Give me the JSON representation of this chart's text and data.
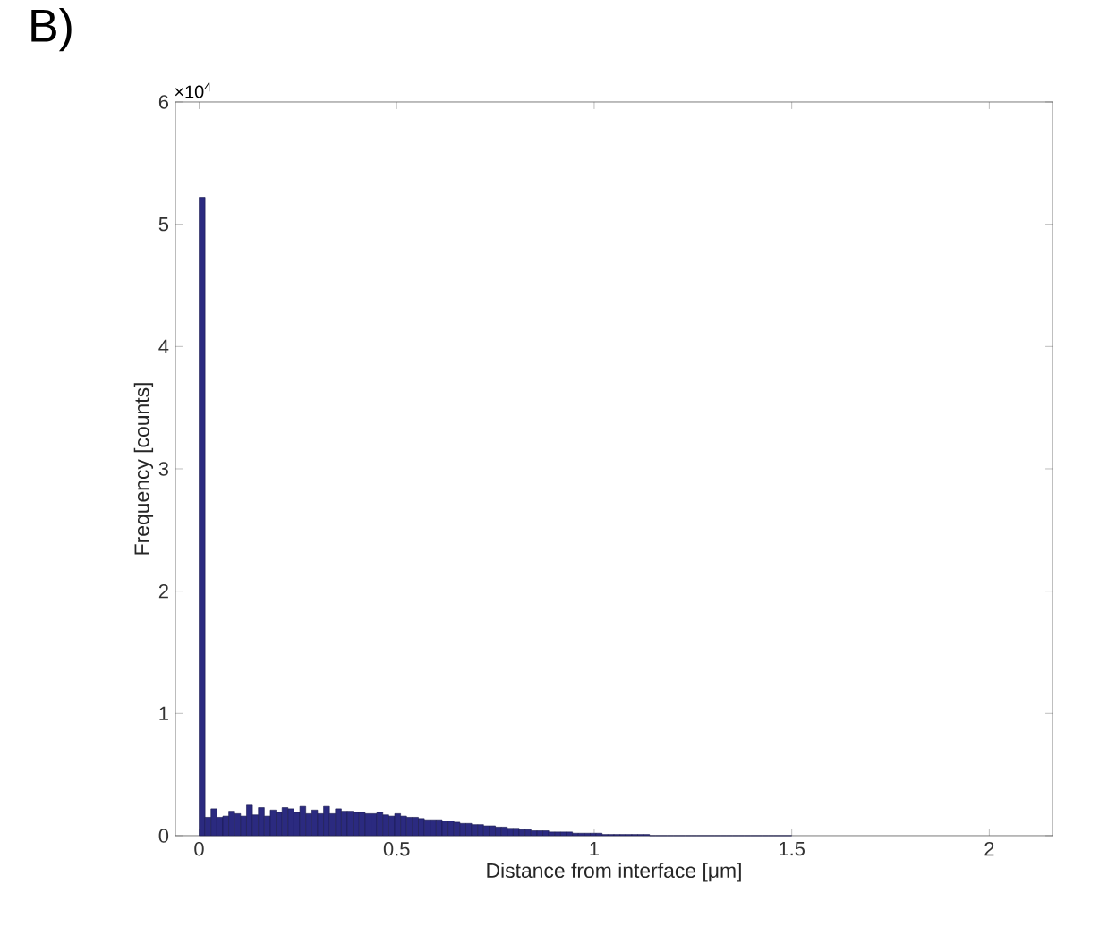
{
  "chart_data": {
    "type": "histogram",
    "xlabel": "Distance from interface [μm]",
    "ylabel": "Frequency [counts]",
    "annotations": [
      "B)",
      "×10$^{4}$"
    ],
    "color": "#2b2a80",
    "bins": [
      0,
      0.015,
      0.03,
      0.045,
      0.06,
      0.075,
      0.09,
      0.105,
      0.12,
      0.135,
      0.15,
      0.165,
      0.18,
      0.195,
      0.21,
      0.225,
      0.24,
      0.255,
      0.27,
      0.285,
      0.3,
      0.315,
      0.33,
      0.345,
      0.36,
      0.375,
      0.39,
      0.405,
      0.42,
      0.435,
      0.45,
      0.465,
      0.48,
      0.495,
      0.51,
      0.525,
      0.54,
      0.555,
      0.57,
      0.585,
      0.6,
      0.615,
      0.63,
      0.645,
      0.66,
      0.675,
      0.69,
      0.705,
      0.72,
      0.735,
      0.75,
      0.765,
      0.78,
      0.795,
      0.81,
      0.825,
      0.84,
      0.855,
      0.87,
      0.885,
      0.9,
      0.915,
      0.93,
      0.945,
      0.96,
      0.975,
      0.99,
      1.005,
      1.02,
      1.035,
      1.05,
      1.065,
      1.08,
      1.095,
      1.11,
      1.125,
      1.14,
      1.155,
      1.17,
      1.185,
      1.2,
      1.215,
      1.23,
      1.245,
      1.26,
      1.275,
      1.29,
      1.305,
      1.32,
      1.335,
      1.35,
      1.365,
      1.38,
      1.395,
      1.41,
      1.425,
      1.44,
      1.455,
      1.47,
      1.485,
      1.5
    ],
    "values": [
      5.22,
      0.15,
      0.22,
      0.15,
      0.16,
      0.2,
      0.18,
      0.16,
      0.25,
      0.17,
      0.23,
      0.16,
      0.21,
      0.19,
      0.23,
      0.22,
      0.19,
      0.24,
      0.18,
      0.21,
      0.18,
      0.24,
      0.18,
      0.22,
      0.2,
      0.2,
      0.19,
      0.19,
      0.18,
      0.18,
      0.19,
      0.17,
      0.16,
      0.18,
      0.16,
      0.15,
      0.15,
      0.14,
      0.13,
      0.13,
      0.13,
      0.12,
      0.12,
      0.11,
      0.1,
      0.1,
      0.09,
      0.09,
      0.08,
      0.08,
      0.07,
      0.07,
      0.06,
      0.06,
      0.05,
      0.05,
      0.04,
      0.04,
      0.04,
      0.03,
      0.03,
      0.03,
      0.03,
      0.02,
      0.02,
      0.02,
      0.02,
      0.02,
      0.01,
      0.01,
      0.01,
      0.01,
      0.01,
      0.01,
      0.01,
      0.01,
      0,
      0,
      0,
      0,
      0,
      0,
      0,
      0,
      0,
      0,
      0,
      0,
      0,
      0,
      0,
      0,
      0,
      0,
      0,
      0,
      0,
      0,
      0,
      0
    ],
    "xlim": [
      -0.06,
      2.16
    ],
    "ylim": [
      0,
      6
    ],
    "xticks": [
      0,
      0.5,
      1,
      1.5,
      2
    ],
    "yticks": [
      0,
      1,
      2,
      3,
      4,
      5,
      6
    ]
  }
}
